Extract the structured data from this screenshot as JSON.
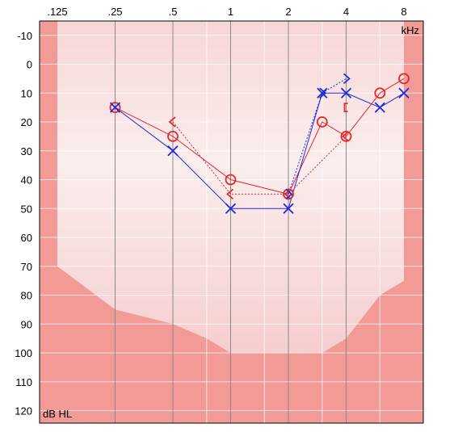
{
  "chart_data": {
    "type": "line",
    "title": "",
    "x_unit_label": "kHz",
    "y_unit_label": "dB HL",
    "x_scale": "log2",
    "x_ticks": [
      {
        "value": 0.125,
        "label": ".125"
      },
      {
        "value": 0.25,
        "label": ".25"
      },
      {
        "value": 0.5,
        "label": ".5"
      },
      {
        "value": 1,
        "label": "1"
      },
      {
        "value": 2,
        "label": "2"
      },
      {
        "value": 4,
        "label": "4"
      },
      {
        "value": 8,
        "label": "8"
      }
    ],
    "x_minor_gridlines": [
      0.75,
      1.5,
      3,
      6
    ],
    "xlim": [
      0.125,
      8
    ],
    "ylim": [
      -15,
      125
    ],
    "y_inverted": true,
    "y_ticks": [
      -10,
      0,
      10,
      20,
      30,
      40,
      50,
      60,
      70,
      80,
      90,
      100,
      110,
      120
    ],
    "grid": true,
    "shaded_region_boundary": [
      {
        "x": 0.125,
        "y": 70
      },
      {
        "x": 0.25,
        "y": 85
      },
      {
        "x": 0.5,
        "y": 90
      },
      {
        "x": 0.75,
        "y": 95
      },
      {
        "x": 1,
        "y": 100
      },
      {
        "x": 2,
        "y": 100
      },
      {
        "x": 3,
        "y": 100
      },
      {
        "x": 4,
        "y": 95
      },
      {
        "x": 6,
        "y": 80
      },
      {
        "x": 8,
        "y": 75
      }
    ],
    "series": [
      {
        "color": "#e8262a",
        "marker": "circle",
        "line_style": "solid",
        "points": [
          {
            "x": 0.25,
            "y": 15
          },
          {
            "x": 0.5,
            "y": 25
          },
          {
            "x": 1,
            "y": 40
          },
          {
            "x": 2,
            "y": 45
          },
          {
            "x": 3,
            "y": 20
          },
          {
            "x": 4,
            "y": 25
          },
          {
            "x": 6,
            "y": 10
          },
          {
            "x": 8,
            "y": 5
          }
        ]
      },
      {
        "color": "#1f2bd6",
        "marker": "cross",
        "line_style": "solid",
        "points": [
          {
            "x": 0.25,
            "y": 15
          },
          {
            "x": 0.5,
            "y": 30
          },
          {
            "x": 1,
            "y": 50
          },
          {
            "x": 2,
            "y": 50
          },
          {
            "x": 3,
            "y": 10
          },
          {
            "x": 4,
            "y": 10
          },
          {
            "x": 6,
            "y": 15
          },
          {
            "x": 8,
            "y": 10
          }
        ]
      },
      {
        "color": "#e8262a",
        "marker": "bracket-left",
        "line_style": "dotted",
        "points": [
          {
            "x": 0.5,
            "y": 20
          },
          {
            "x": 1,
            "y": 45
          },
          {
            "x": 2,
            "y": 45
          },
          {
            "x": 4,
            "y": 25
          }
        ]
      },
      {
        "color": "#1f2bd6",
        "marker": "bracket-right",
        "line_style": "dotted",
        "points": [
          {
            "x": 2,
            "y": 45
          },
          {
            "x": 3,
            "y": 10
          },
          {
            "x": 4,
            "y": 5
          }
        ]
      },
      {
        "color": "#e8262a",
        "marker": "square-bracket",
        "line_style": "none",
        "points": [
          {
            "x": 4,
            "y": 15
          }
        ]
      }
    ]
  }
}
